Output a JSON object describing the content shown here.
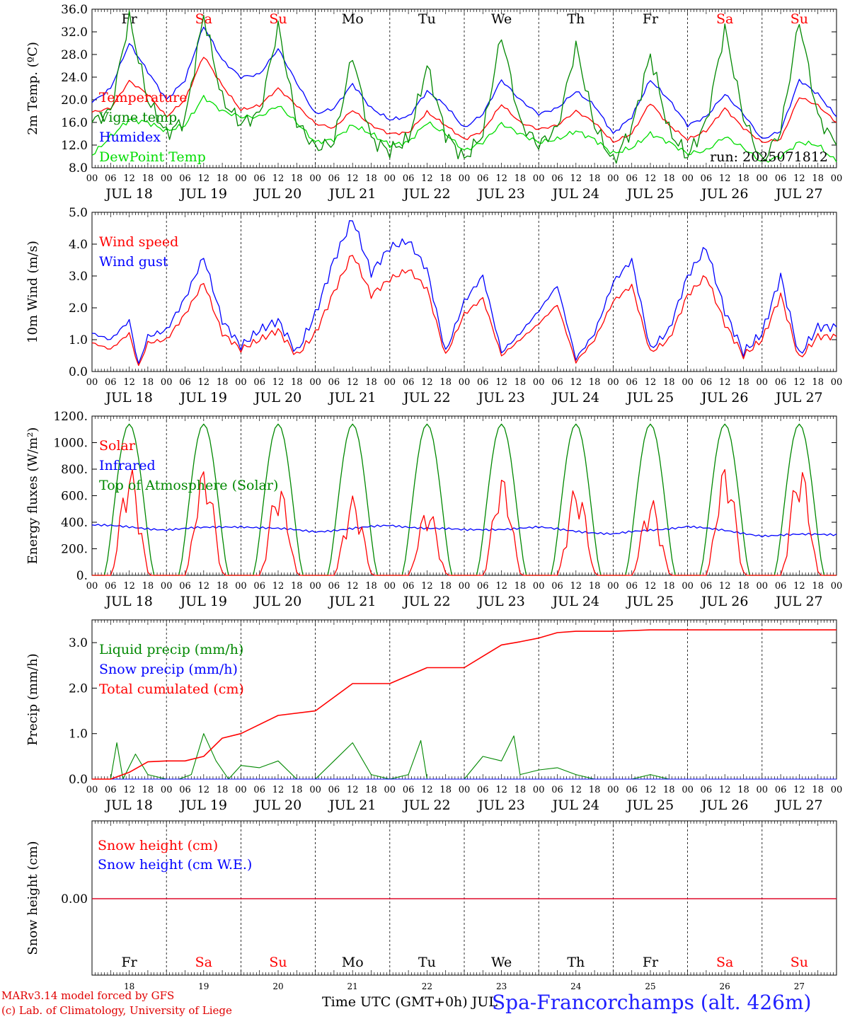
{
  "footer": {
    "model": "MARv3.14 model forced by GFS",
    "credit": "(c) Lab. of Climatology, University of Liege",
    "xlabel": "Time UTC (GMT+0h) JUL",
    "station": "Spa-Francorchamps (alt. 426m)"
  },
  "colors": {
    "red": "#ff0000",
    "green": "#008800",
    "blue": "#0000ff",
    "lightgreen": "#00dd00"
  },
  "days": [
    "Fr",
    "Sa",
    "Su",
    "Mo",
    "Tu",
    "We",
    "Th",
    "Fr",
    "Sa",
    "Su"
  ],
  "weekend": [
    false,
    true,
    true,
    false,
    false,
    false,
    false,
    false,
    true,
    true
  ],
  "dates": [
    "JUL 18",
    "JUL 19",
    "JUL 20",
    "JUL 21",
    "JUL 22",
    "JUL 23",
    "JUL 24",
    "JUL 25",
    "JUL 26",
    "JUL 27"
  ],
  "day_numbers": [
    "18",
    "19",
    "20",
    "21",
    "22",
    "23",
    "24",
    "25",
    "26",
    "27"
  ],
  "hour_labels": [
    "00",
    "06",
    "12",
    "18"
  ],
  "final_hour_label": "00",
  "chart_data": [
    {
      "type": "line",
      "ylabel": "2m Temp. (ºC)",
      "ylim": [
        8,
        36
      ],
      "yticks": [
        "8.0",
        "12.0",
        "16.0",
        "20.0",
        "24.0",
        "28.0",
        "32.0",
        "36.0"
      ],
      "annotation": "run: 2025071812",
      "x_hours": [
        0,
        6,
        12,
        18,
        24,
        30,
        36,
        42,
        48,
        54,
        60,
        66,
        72,
        78,
        84,
        90,
        96,
        102,
        108,
        114,
        120,
        126,
        132,
        138,
        144,
        150,
        156,
        162,
        168,
        174,
        180,
        186,
        192,
        198,
        204,
        210,
        216,
        222,
        228,
        234,
        240
      ],
      "series": [
        {
          "name": "Temperature",
          "color": "#ff0000",
          "values": [
            17.8,
            18.5,
            23.3,
            21.0,
            17.0,
            20.0,
            27.8,
            22.5,
            18.2,
            19.0,
            22.0,
            19.0,
            15.8,
            15.0,
            18.2,
            15.5,
            14.0,
            14.2,
            17.8,
            15.5,
            13.0,
            14.5,
            19.2,
            16.0,
            14.8,
            15.5,
            18.0,
            16.0,
            12.5,
            14.0,
            19.5,
            15.5,
            13.0,
            14.5,
            18.5,
            15.0,
            12.5,
            13.0,
            20.5,
            19.0,
            16.0
          ]
        },
        {
          "name": "Vigne temp",
          "color": "#008800",
          "values": [
            16.0,
            18.0,
            34.5,
            20.0,
            14.0,
            16.5,
            35.0,
            20.0,
            15.8,
            17.5,
            33.0,
            16.0,
            11.5,
            12.5,
            28.0,
            13.0,
            11.0,
            13.0,
            26.0,
            14.0,
            9.5,
            14.0,
            31.5,
            16.0,
            12.0,
            15.0,
            29.5,
            15.5,
            9.0,
            15.0,
            28.0,
            14.5,
            10.0,
            16.0,
            32.5,
            17.0,
            9.0,
            14.5,
            34.0,
            17.0,
            12.0
          ]
        },
        {
          "name": "Humidex",
          "color": "#0000ff",
          "values": [
            19.5,
            22.0,
            30.0,
            25.0,
            20.0,
            23.5,
            33.0,
            27.0,
            24.0,
            24.5,
            29.0,
            23.0,
            17.5,
            18.5,
            22.8,
            18.5,
            16.5,
            17.0,
            21.5,
            19.0,
            15.0,
            17.5,
            23.5,
            20.0,
            17.5,
            18.5,
            21.5,
            19.0,
            14.0,
            17.0,
            23.5,
            20.0,
            15.5,
            17.0,
            21.0,
            17.5,
            13.0,
            14.5,
            23.5,
            21.0,
            17.0
          ]
        },
        {
          "name": "DewPoint Temp",
          "color": "#00dd00",
          "values": [
            10.2,
            13.5,
            16.5,
            16.0,
            14.5,
            15.5,
            20.5,
            18.0,
            17.0,
            17.0,
            19.0,
            16.0,
            12.5,
            13.0,
            15.5,
            14.0,
            12.0,
            12.5,
            16.0,
            14.0,
            11.0,
            12.5,
            15.8,
            14.0,
            12.5,
            13.0,
            14.5,
            13.0,
            10.5,
            11.5,
            14.0,
            12.5,
            10.5,
            11.0,
            13.5,
            11.5,
            9.0,
            10.0,
            12.5,
            12.0,
            9.0
          ]
        }
      ]
    },
    {
      "type": "line",
      "ylabel": "10m Wind (m/s)",
      "ylim": [
        0,
        5
      ],
      "yticks": [
        "0.0",
        "1.0",
        "2.0",
        "3.0",
        "4.0",
        "5.0"
      ],
      "x_hours": [
        0,
        6,
        12,
        15,
        18,
        24,
        30,
        36,
        42,
        48,
        54,
        60,
        66,
        72,
        78,
        84,
        90,
        96,
        102,
        108,
        114,
        120,
        126,
        132,
        138,
        144,
        150,
        156,
        162,
        168,
        174,
        180,
        186,
        192,
        198,
        204,
        210,
        216,
        222,
        228,
        234,
        240
      ],
      "series": [
        {
          "name": "Wind speed",
          "color": "#ff0000",
          "values": [
            0.9,
            0.7,
            1.2,
            0.15,
            0.9,
            1.0,
            1.8,
            2.8,
            1.2,
            0.7,
            1.0,
            1.3,
            0.5,
            1.2,
            2.5,
            3.7,
            2.4,
            2.9,
            3.2,
            2.6,
            0.5,
            1.8,
            2.3,
            0.5,
            1.0,
            1.5,
            2.1,
            0.3,
            1.0,
            2.2,
            2.7,
            0.6,
            1.0,
            2.4,
            3.0,
            1.5,
            0.5,
            1.0,
            2.4,
            0.4,
            1.1,
            1.1
          ]
        },
        {
          "name": "Wind gust",
          "color": "#0000ff",
          "values": [
            1.2,
            1.0,
            1.6,
            0.2,
            1.1,
            1.3,
            2.3,
            3.6,
            1.6,
            0.8,
            1.3,
            1.6,
            0.6,
            1.8,
            3.5,
            4.8,
            3.1,
            3.9,
            4.1,
            3.2,
            0.6,
            2.2,
            3.0,
            0.6,
            1.2,
            1.9,
            2.7,
            0.4,
            1.2,
            2.8,
            3.5,
            0.7,
            1.3,
            3.0,
            3.9,
            1.9,
            0.6,
            1.2,
            3.0,
            0.5,
            1.4,
            1.4
          ]
        }
      ]
    },
    {
      "type": "line",
      "ylabel": "Energy fluxes (W/m²)",
      "ylim": [
        0,
        1200
      ],
      "yticks": [
        "0.",
        "200.",
        "400.",
        "600.",
        "800.",
        "1000.",
        "1200."
      ],
      "day_peaks": {
        "toa": 1140,
        "solar": [
          820,
          820,
          690,
          600,
          520,
          750,
          690,
          580,
          840,
          840
        ]
      },
      "series": [
        {
          "name": "Solar",
          "color": "#ff0000"
        },
        {
          "name": "Infrared",
          "color": "#0000ff",
          "x_hours": [
            0,
            24,
            48,
            72,
            96,
            120,
            144,
            168,
            192,
            216,
            240
          ],
          "values": [
            380,
            345,
            370,
            330,
            375,
            340,
            360,
            310,
            370,
            300,
            310
          ]
        },
        {
          "name": "Top of Atmosphere (Solar)",
          "color": "#008800"
        }
      ]
    },
    {
      "type": "line",
      "ylabel": "Precip (mm/h)",
      "ylim": [
        0,
        3.5
      ],
      "yticks": [
        "0.0",
        "1.0",
        "2.0",
        "3.0"
      ],
      "series": [
        {
          "name": "Liquid precip (mm/h)",
          "color": "#008800",
          "x_hours": [
            0,
            6,
            8,
            10,
            14,
            18,
            24,
            28,
            32,
            36,
            40,
            44,
            48,
            54,
            60,
            66,
            72,
            78,
            84,
            90,
            96,
            102,
            106,
            108,
            114,
            120,
            126,
            132,
            136,
            138,
            144,
            150,
            156,
            162,
            168,
            174,
            180,
            186,
            192,
            198,
            204,
            210,
            216,
            222,
            228,
            234,
            240
          ],
          "values": [
            0,
            0,
            0.8,
            0,
            0.55,
            0.1,
            0,
            0,
            0.1,
            1.0,
            0.4,
            0,
            0.3,
            0.25,
            0.4,
            0,
            0,
            0.4,
            0.8,
            0.1,
            0,
            0.1,
            0.85,
            0,
            0,
            0,
            0.5,
            0.4,
            0.95,
            0.1,
            0.2,
            0.25,
            0.1,
            0,
            0,
            0,
            0.1,
            0,
            0,
            0,
            0,
            0,
            0,
            0,
            0,
            0,
            0
          ]
        },
        {
          "name": "Snow precip (mm/h)",
          "color": "#0000ff",
          "x_hours": [
            0,
            240
          ],
          "values": [
            0,
            0
          ]
        },
        {
          "name": "Total cumulated (cm)",
          "color": "#ff0000",
          "x_hours": [
            0,
            6,
            12,
            18,
            24,
            30,
            36,
            42,
            48,
            60,
            72,
            84,
            96,
            108,
            120,
            126,
            132,
            138,
            144,
            150,
            156,
            168,
            180,
            192,
            216,
            240
          ],
          "values": [
            0,
            0,
            0.15,
            0.38,
            0.4,
            0.4,
            0.5,
            0.9,
            1.0,
            1.4,
            1.5,
            2.1,
            2.1,
            2.45,
            2.45,
            2.7,
            2.95,
            3.02,
            3.1,
            3.22,
            3.25,
            3.25,
            3.28,
            3.28,
            3.28,
            3.28
          ]
        }
      ]
    },
    {
      "type": "line",
      "ylabel": "Snow height (cm)",
      "ytick": "0.00",
      "series": [
        {
          "name": "Snow height (cm)",
          "color": "#ff0000",
          "x_hours": [
            0,
            240
          ],
          "values": [
            0,
            0
          ]
        },
        {
          "name": "Snow height (cm W.E.)",
          "color": "#0000ff",
          "x_hours": [
            0,
            240
          ],
          "values": [
            0,
            0
          ]
        }
      ]
    }
  ]
}
